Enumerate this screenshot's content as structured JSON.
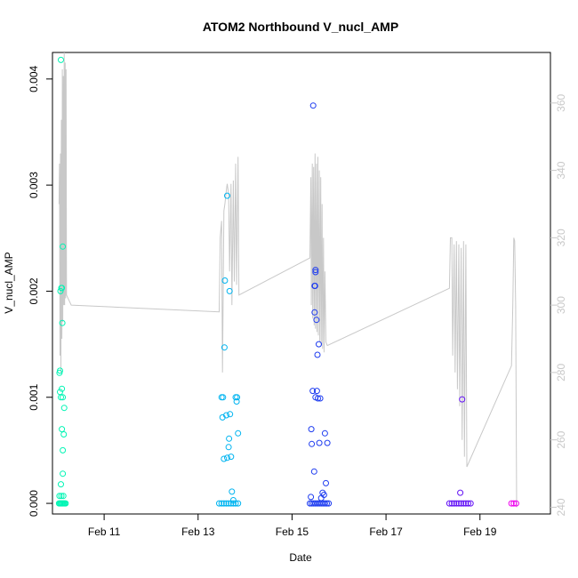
{
  "chart_data": {
    "type": "scatter",
    "title": "ATOM2 Northbound V_nucl_AMP",
    "xlabel": "Date",
    "ylabel": "V_nucl_AMP",
    "y2label": "",
    "x_ticks": [
      {
        "day": 11,
        "label": "Feb 11"
      },
      {
        "day": 13,
        "label": "Feb 13"
      },
      {
        "day": 15,
        "label": "Feb 15"
      },
      {
        "day": 17,
        "label": "Feb 17"
      },
      {
        "day": 19,
        "label": "Feb 19"
      }
    ],
    "xlim": [
      9.9,
      20.5
    ],
    "ylim": [
      -0.0001,
      0.00425
    ],
    "y_ticks": [
      0.0,
      0.001,
      0.002,
      0.003,
      0.004
    ],
    "y_tick_labels": [
      "0.000",
      "0.001",
      "0.002",
      "0.003",
      "0.004"
    ],
    "y2lim": [
      238,
      375
    ],
    "y2_ticks": [
      240,
      260,
      280,
      300,
      320,
      340,
      360
    ],
    "y2_tick_labels": [
      "240",
      "260",
      "280",
      "300",
      "320",
      "340",
      "360"
    ],
    "grid": false,
    "legend": "none",
    "colors": {
      "line": "#c8c8c8",
      "axis": "#000000",
      "right_axis": "#c8c8c8",
      "group1": "#00f5b4",
      "group2": "#00b4f0",
      "group3": "#1e3cf0",
      "group4": "#6414f5",
      "group5": "#f000f0"
    },
    "series": [
      {
        "type": "scatter",
        "axis": "left",
        "color": "#00f5b4",
        "points": [
          [
            10.08,
            0.00418
          ],
          [
            10.12,
            0.00242
          ],
          [
            10.09,
            0.00203
          ],
          [
            10.07,
            0.002
          ],
          [
            10.1,
            0.00203
          ],
          [
            10.11,
            0.0017
          ],
          [
            10.06,
            0.00125
          ],
          [
            10.05,
            0.00123
          ],
          [
            10.06,
            0.00105
          ],
          [
            10.1,
            0.00108
          ],
          [
            10.08,
            0.001
          ],
          [
            10.12,
            0.001
          ],
          [
            10.15,
            0.0009
          ],
          [
            10.1,
            0.0007
          ],
          [
            10.14,
            0.00065
          ],
          [
            10.12,
            0.0005
          ],
          [
            10.12,
            0.00028
          ],
          [
            10.08,
            0.00018
          ],
          [
            10.05,
            7e-05
          ],
          [
            10.09,
            7e-05
          ],
          [
            10.13,
            7e-05
          ],
          [
            10.04,
            0.0
          ],
          [
            10.06,
            0.0
          ],
          [
            10.08,
            0.0
          ],
          [
            10.1,
            0.0
          ],
          [
            10.12,
            0.0
          ],
          [
            10.14,
            0.0
          ],
          [
            10.16,
            0.0
          ],
          [
            10.18,
            0.0
          ]
        ]
      },
      {
        "type": "scatter",
        "axis": "left",
        "color": "#00b4f0",
        "points": [
          [
            13.62,
            0.0029
          ],
          [
            13.57,
            0.0021
          ],
          [
            13.67,
            0.002
          ],
          [
            13.56,
            0.00147
          ],
          [
            13.5,
            0.001
          ],
          [
            13.53,
            0.001
          ],
          [
            13.8,
            0.001
          ],
          [
            13.83,
            0.001
          ],
          [
            13.82,
            0.00096
          ],
          [
            13.68,
            0.00084
          ],
          [
            13.6,
            0.00083
          ],
          [
            13.52,
            0.00081
          ],
          [
            13.85,
            0.00066
          ],
          [
            13.66,
            0.00061
          ],
          [
            13.65,
            0.00053
          ],
          [
            13.7,
            0.00044
          ],
          [
            13.62,
            0.00043
          ],
          [
            13.55,
            0.00042
          ],
          [
            13.72,
            0.00011
          ],
          [
            13.75,
            3e-05
          ],
          [
            13.45,
            0.0
          ],
          [
            13.5,
            0.0
          ],
          [
            13.55,
            0.0
          ],
          [
            13.6,
            0.0
          ],
          [
            13.65,
            0.0
          ],
          [
            13.7,
            0.0
          ],
          [
            13.75,
            0.0
          ],
          [
            13.8,
            0.0
          ],
          [
            13.85,
            0.0
          ]
        ]
      },
      {
        "type": "scatter",
        "axis": "left",
        "color": "#1e3cf0",
        "points": [
          [
            15.45,
            0.00375
          ],
          [
            15.5,
            0.0022
          ],
          [
            15.5,
            0.00218
          ],
          [
            15.49,
            0.00205
          ],
          [
            15.48,
            0.00205
          ],
          [
            15.48,
            0.0018
          ],
          [
            15.52,
            0.00173
          ],
          [
            15.57,
            0.0015
          ],
          [
            15.54,
            0.0014
          ],
          [
            15.44,
            0.00106
          ],
          [
            15.53,
            0.00106
          ],
          [
            15.5,
            0.001
          ],
          [
            15.55,
            0.00099
          ],
          [
            15.6,
            0.00099
          ],
          [
            15.41,
            0.0007
          ],
          [
            15.7,
            0.00066
          ],
          [
            15.42,
            0.00056
          ],
          [
            15.58,
            0.00057
          ],
          [
            15.75,
            0.00057
          ],
          [
            15.47,
            0.0003
          ],
          [
            15.72,
            0.00019
          ],
          [
            15.65,
            0.0001
          ],
          [
            15.68,
            8e-05
          ],
          [
            15.62,
            5e-05
          ],
          [
            15.4,
            6e-05
          ],
          [
            15.38,
            0.0
          ],
          [
            15.42,
            0.0
          ],
          [
            15.46,
            0.0
          ],
          [
            15.5,
            0.0
          ],
          [
            15.54,
            0.0
          ],
          [
            15.58,
            0.0
          ],
          [
            15.62,
            0.0
          ],
          [
            15.66,
            0.0
          ],
          [
            15.7,
            0.0
          ],
          [
            15.74,
            0.0
          ],
          [
            15.78,
            0.0
          ]
        ]
      },
      {
        "type": "scatter",
        "axis": "left",
        "color": "#6414f5",
        "points": [
          [
            18.62,
            0.00098
          ],
          [
            18.58,
            0.0001
          ],
          [
            18.35,
            0.0
          ],
          [
            18.4,
            0.0
          ],
          [
            18.45,
            0.0
          ],
          [
            18.5,
            0.0
          ],
          [
            18.55,
            0.0
          ],
          [
            18.6,
            0.0
          ],
          [
            18.65,
            0.0
          ],
          [
            18.7,
            0.0
          ],
          [
            18.75,
            0.0
          ],
          [
            18.8,
            0.0
          ]
        ]
      },
      {
        "type": "scatter",
        "axis": "left",
        "color": "#f000f0",
        "points": [
          [
            19.67,
            0.0
          ],
          [
            19.72,
            0.0
          ],
          [
            19.77,
            0.0
          ]
        ]
      },
      {
        "type": "line",
        "axis": "right",
        "color": "#c8c8c8",
        "points": [
          [
            10.04,
            330
          ],
          [
            10.05,
            342
          ],
          [
            10.06,
            285
          ],
          [
            10.07,
            345
          ],
          [
            10.08,
            280
          ],
          [
            10.09,
            355
          ],
          [
            10.1,
            290
          ],
          [
            10.11,
            370
          ],
          [
            10.12,
            295
          ],
          [
            10.13,
            368
          ],
          [
            10.14,
            300
          ],
          [
            10.15,
            375
          ],
          [
            10.16,
            300
          ],
          [
            10.17,
            372
          ],
          [
            10.18,
            302
          ],
          [
            10.19,
            370
          ],
          [
            10.2,
            303
          ],
          [
            10.3,
            300
          ],
          [
            13.45,
            298
          ],
          [
            13.47,
            320
          ],
          [
            13.5,
            325
          ],
          [
            13.52,
            280
          ],
          [
            13.55,
            328
          ],
          [
            13.57,
            330
          ],
          [
            13.6,
            334
          ],
          [
            13.62,
            336
          ],
          [
            13.65,
            333
          ],
          [
            13.67,
            310
          ],
          [
            13.7,
            336
          ],
          [
            13.72,
            300
          ],
          [
            13.75,
            337
          ],
          [
            13.77,
            307
          ],
          [
            13.8,
            342
          ],
          [
            13.82,
            306
          ],
          [
            13.85,
            344
          ],
          [
            13.87,
            303
          ],
          [
            15.38,
            314
          ],
          [
            15.4,
            338
          ],
          [
            15.41,
            300
          ],
          [
            15.43,
            342
          ],
          [
            15.44,
            296
          ],
          [
            15.46,
            341
          ],
          [
            15.47,
            294
          ],
          [
            15.49,
            345
          ],
          [
            15.5,
            293
          ],
          [
            15.52,
            342
          ],
          [
            15.53,
            292
          ],
          [
            15.55,
            344
          ],
          [
            15.56,
            291
          ],
          [
            15.58,
            340
          ],
          [
            15.59,
            289
          ],
          [
            15.61,
            338
          ],
          [
            15.62,
            288
          ],
          [
            15.64,
            330
          ],
          [
            15.65,
            287
          ],
          [
            15.67,
            320
          ],
          [
            15.68,
            286
          ],
          [
            15.7,
            310
          ],
          [
            15.72,
            289
          ],
          [
            15.75,
            288
          ],
          [
            18.35,
            305
          ],
          [
            18.37,
            320
          ],
          [
            18.4,
            320
          ],
          [
            18.42,
            285
          ],
          [
            18.45,
            318
          ],
          [
            18.47,
            280
          ],
          [
            18.5,
            319
          ],
          [
            18.52,
            275
          ],
          [
            18.55,
            318
          ],
          [
            18.57,
            270
          ],
          [
            18.6,
            317
          ],
          [
            18.62,
            260
          ],
          [
            18.65,
            319
          ],
          [
            18.67,
            255
          ],
          [
            18.7,
            318
          ],
          [
            18.72,
            252
          ],
          [
            19.67,
            282
          ],
          [
            19.7,
            300
          ],
          [
            19.72,
            320
          ],
          [
            19.74,
            319
          ],
          [
            19.76,
            300
          ],
          [
            19.78,
            240
          ]
        ]
      }
    ]
  }
}
